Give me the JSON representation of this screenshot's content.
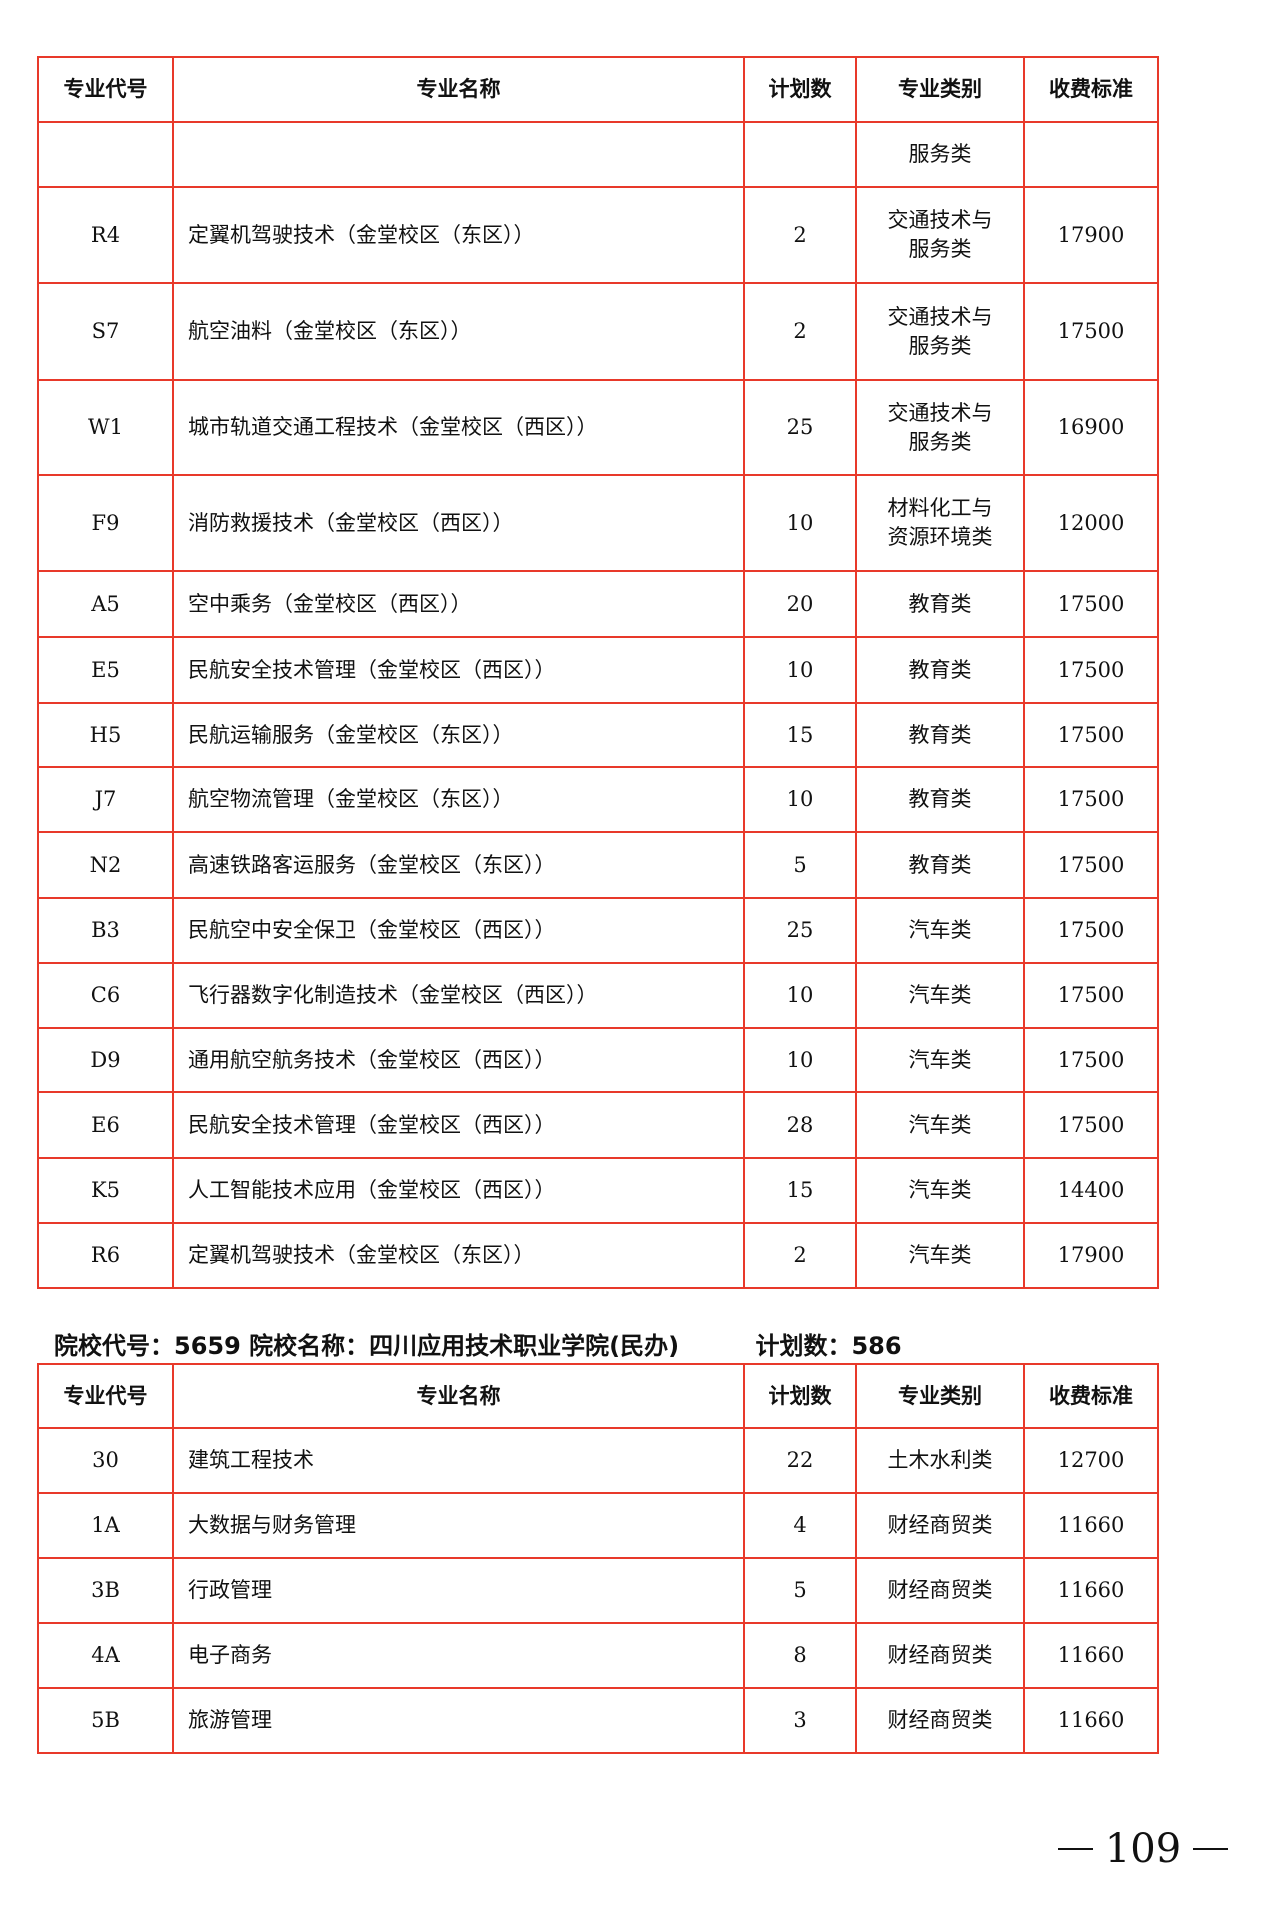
{
  "headers": [
    "专业代号",
    "专业名称",
    "计划数",
    "专业类别",
    "收费标准"
  ],
  "table1": {
    "rows": [
      {
        "h": 65,
        "c": [
          "",
          "",
          "",
          "服务类",
          ""
        ]
      },
      {
        "h": 96,
        "c": [
          "R4",
          "定翼机驾驶技术（金堂校区（东区））",
          "2",
          "交通技术与\n服务类",
          "17900"
        ]
      },
      {
        "h": 97,
        "c": [
          "S7",
          "航空油料（金堂校区（东区））",
          "2",
          "交通技术与\n服务类",
          "17500"
        ]
      },
      {
        "h": 95,
        "c": [
          "W1",
          "城市轨道交通工程技术（金堂校区（西区））",
          "25",
          "交通技术与\n服务类",
          "16900"
        ]
      },
      {
        "h": 96,
        "c": [
          "F9",
          "消防救援技术（金堂校区（西区））",
          "10",
          "材料化工与\n资源环境类",
          "12000"
        ]
      },
      {
        "h": 66,
        "c": [
          "A5",
          "空中乘务（金堂校区（西区））",
          "20",
          "教育类",
          "17500"
        ]
      },
      {
        "h": 66,
        "c": [
          "E5",
          "民航安全技术管理（金堂校区（西区））",
          "10",
          "教育类",
          "17500"
        ]
      },
      {
        "h": 64,
        "c": [
          "H5",
          "民航运输服务（金堂校区（东区））",
          "15",
          "教育类",
          "17500"
        ]
      },
      {
        "h": 65,
        "c": [
          "J7",
          "航空物流管理（金堂校区（东区））",
          "10",
          "教育类",
          "17500"
        ]
      },
      {
        "h": 66,
        "c": [
          "N2",
          "高速铁路客运服务（金堂校区（东区））",
          "5",
          "教育类",
          "17500"
        ]
      },
      {
        "h": 65,
        "c": [
          "B3",
          "民航空中安全保卫（金堂校区（西区））",
          "25",
          "汽车类",
          "17500"
        ]
      },
      {
        "h": 65,
        "c": [
          "C6",
          "飞行器数字化制造技术（金堂校区（西区））",
          "10",
          "汽车类",
          "17500"
        ]
      },
      {
        "h": 64,
        "c": [
          "D9",
          "通用航空航务技术（金堂校区（西区））",
          "10",
          "汽车类",
          "17500"
        ]
      },
      {
        "h": 66,
        "c": [
          "E6",
          "民航安全技术管理（金堂校区（西区））",
          "28",
          "汽车类",
          "17500"
        ]
      },
      {
        "h": 65,
        "c": [
          "K5",
          "人工智能技术应用（金堂校区（西区））",
          "15",
          "汽车类",
          "14400"
        ]
      },
      {
        "h": 65,
        "c": [
          "R6",
          "定翼机驾驶技术（金堂校区（东区））",
          "2",
          "汽车类",
          "17900"
        ]
      }
    ]
  },
  "school": {
    "code_label": "院校代号：",
    "code": "5659",
    "name_label": "院校名称：",
    "name": "四川应用技术职业学院(民办)",
    "plan_label": "计划数：",
    "plan": "586"
  },
  "table2": {
    "rows": [
      {
        "c": [
          "30",
          "建筑工程技术",
          "22",
          "土木水利类",
          "12700"
        ]
      },
      {
        "c": [
          "1A",
          "大数据与财务管理",
          "4",
          "财经商贸类",
          "11660"
        ]
      },
      {
        "c": [
          "3B",
          "行政管理",
          "5",
          "财经商贸类",
          "11660"
        ]
      },
      {
        "c": [
          "4A",
          "电子商务",
          "8",
          "财经商贸类",
          "11660"
        ]
      },
      {
        "c": [
          "5B",
          "旅游管理",
          "3",
          "财经商贸类",
          "11660"
        ]
      }
    ]
  },
  "page_number": "109",
  "colors": {
    "border": "#e8392a"
  }
}
